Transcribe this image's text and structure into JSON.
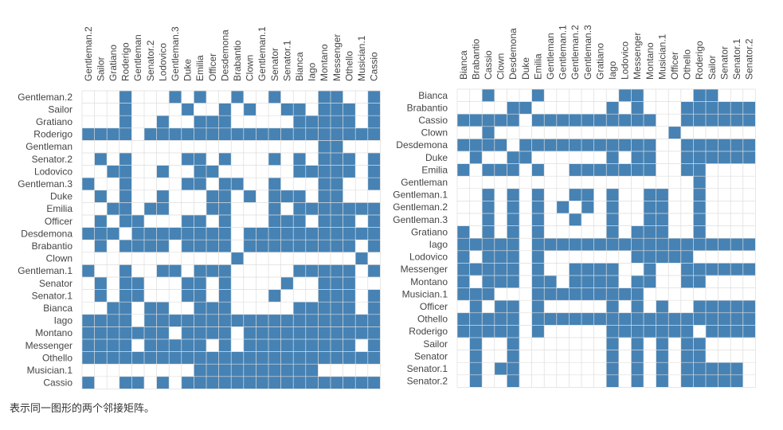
{
  "caption": "表示同一图形的两个邻接矩阵。",
  "colors": {
    "fill": "#4682b4",
    "grid": "#dddddd",
    "label": "#444444"
  },
  "chart_data": [
    {
      "type": "heatmap",
      "name": "matrix-1",
      "labels": [
        "Gentleman.2",
        "Sailor",
        "Gratiano",
        "Roderigo",
        "Gentleman",
        "Senator.2",
        "Lodovico",
        "Gentleman.3",
        "Duke",
        "Emilia",
        "Officer",
        "Desdemona",
        "Brabantio",
        "Clown",
        "Gentleman.1",
        "Senator",
        "Senator.1",
        "Bianca",
        "Iago",
        "Montano",
        "Messenger",
        "Othello",
        "Musician.1",
        "Cassio"
      ],
      "matrix": [
        "000100010100100100011001",
        "000100001001010011011101",
        "000100100111000001111101",
        "111101111111111111111111",
        "000000000000000000011000",
        "010100001101000101011101",
        "001100100110000001111101",
        "100100001101100100011001",
        "010100100011010111011000",
        "001101100011000101111111",
        "010110001101000111011101",
        "111011111111011111111111",
        "010111101111011111111101",
        "000000000000100000000010",
        "100100110111000001111101",
        "010110001101000010011100",
        "010110001101000100011101",
        "001101100111000001111101",
        "111101111111111111111111",
        "111111101111011111111111",
        "111101111101011111111101",
        "111111111111111111111111",
        "000000000111111111100000",
        "100110101111111111111111"
      ]
    },
    {
      "type": "heatmap",
      "name": "matrix-2",
      "labels": [
        "Bianca",
        "Brabantio",
        "Cassio",
        "Clown",
        "Desdemona",
        "Duke",
        "Emilia",
        "Gentleman",
        "Gentleman.1",
        "Gentleman.2",
        "Gentleman.3",
        "Gratiano",
        "Iago",
        "Lodovico",
        "Messenger",
        "Montano",
        "Musician.1",
        "Officer",
        "Othello",
        "Roderigo",
        "Sailor",
        "Senator",
        "Senator.1",
        "Senator.2"
      ],
      "matrix": [
        "001000100000011000011000",
        "000011000000101000111111",
        "111110111111111100111111",
        "001000000000000001000000",
        "111101111111111100111111",
        "010011000000101100111111",
        "101110100111111100110000",
        "000000000000000000010000",
        "001010100110100110010000",
        "001010101010100110010000",
        "001010100100100110010000",
        "101010100000101110010000",
        "111110111111111111111111",
        "101110100000001111100000",
        "111110100111100100111111",
        "101110110111101100110000",
        "111000111111111000000000",
        "010110100000101010011111",
        "111110111111111111111111",
        "111110100000111111101111",
        "010010000000101010110000",
        "010010000000101010110000",
        "010110000000101010111110",
        "010010000000101010111110"
      ]
    }
  ]
}
